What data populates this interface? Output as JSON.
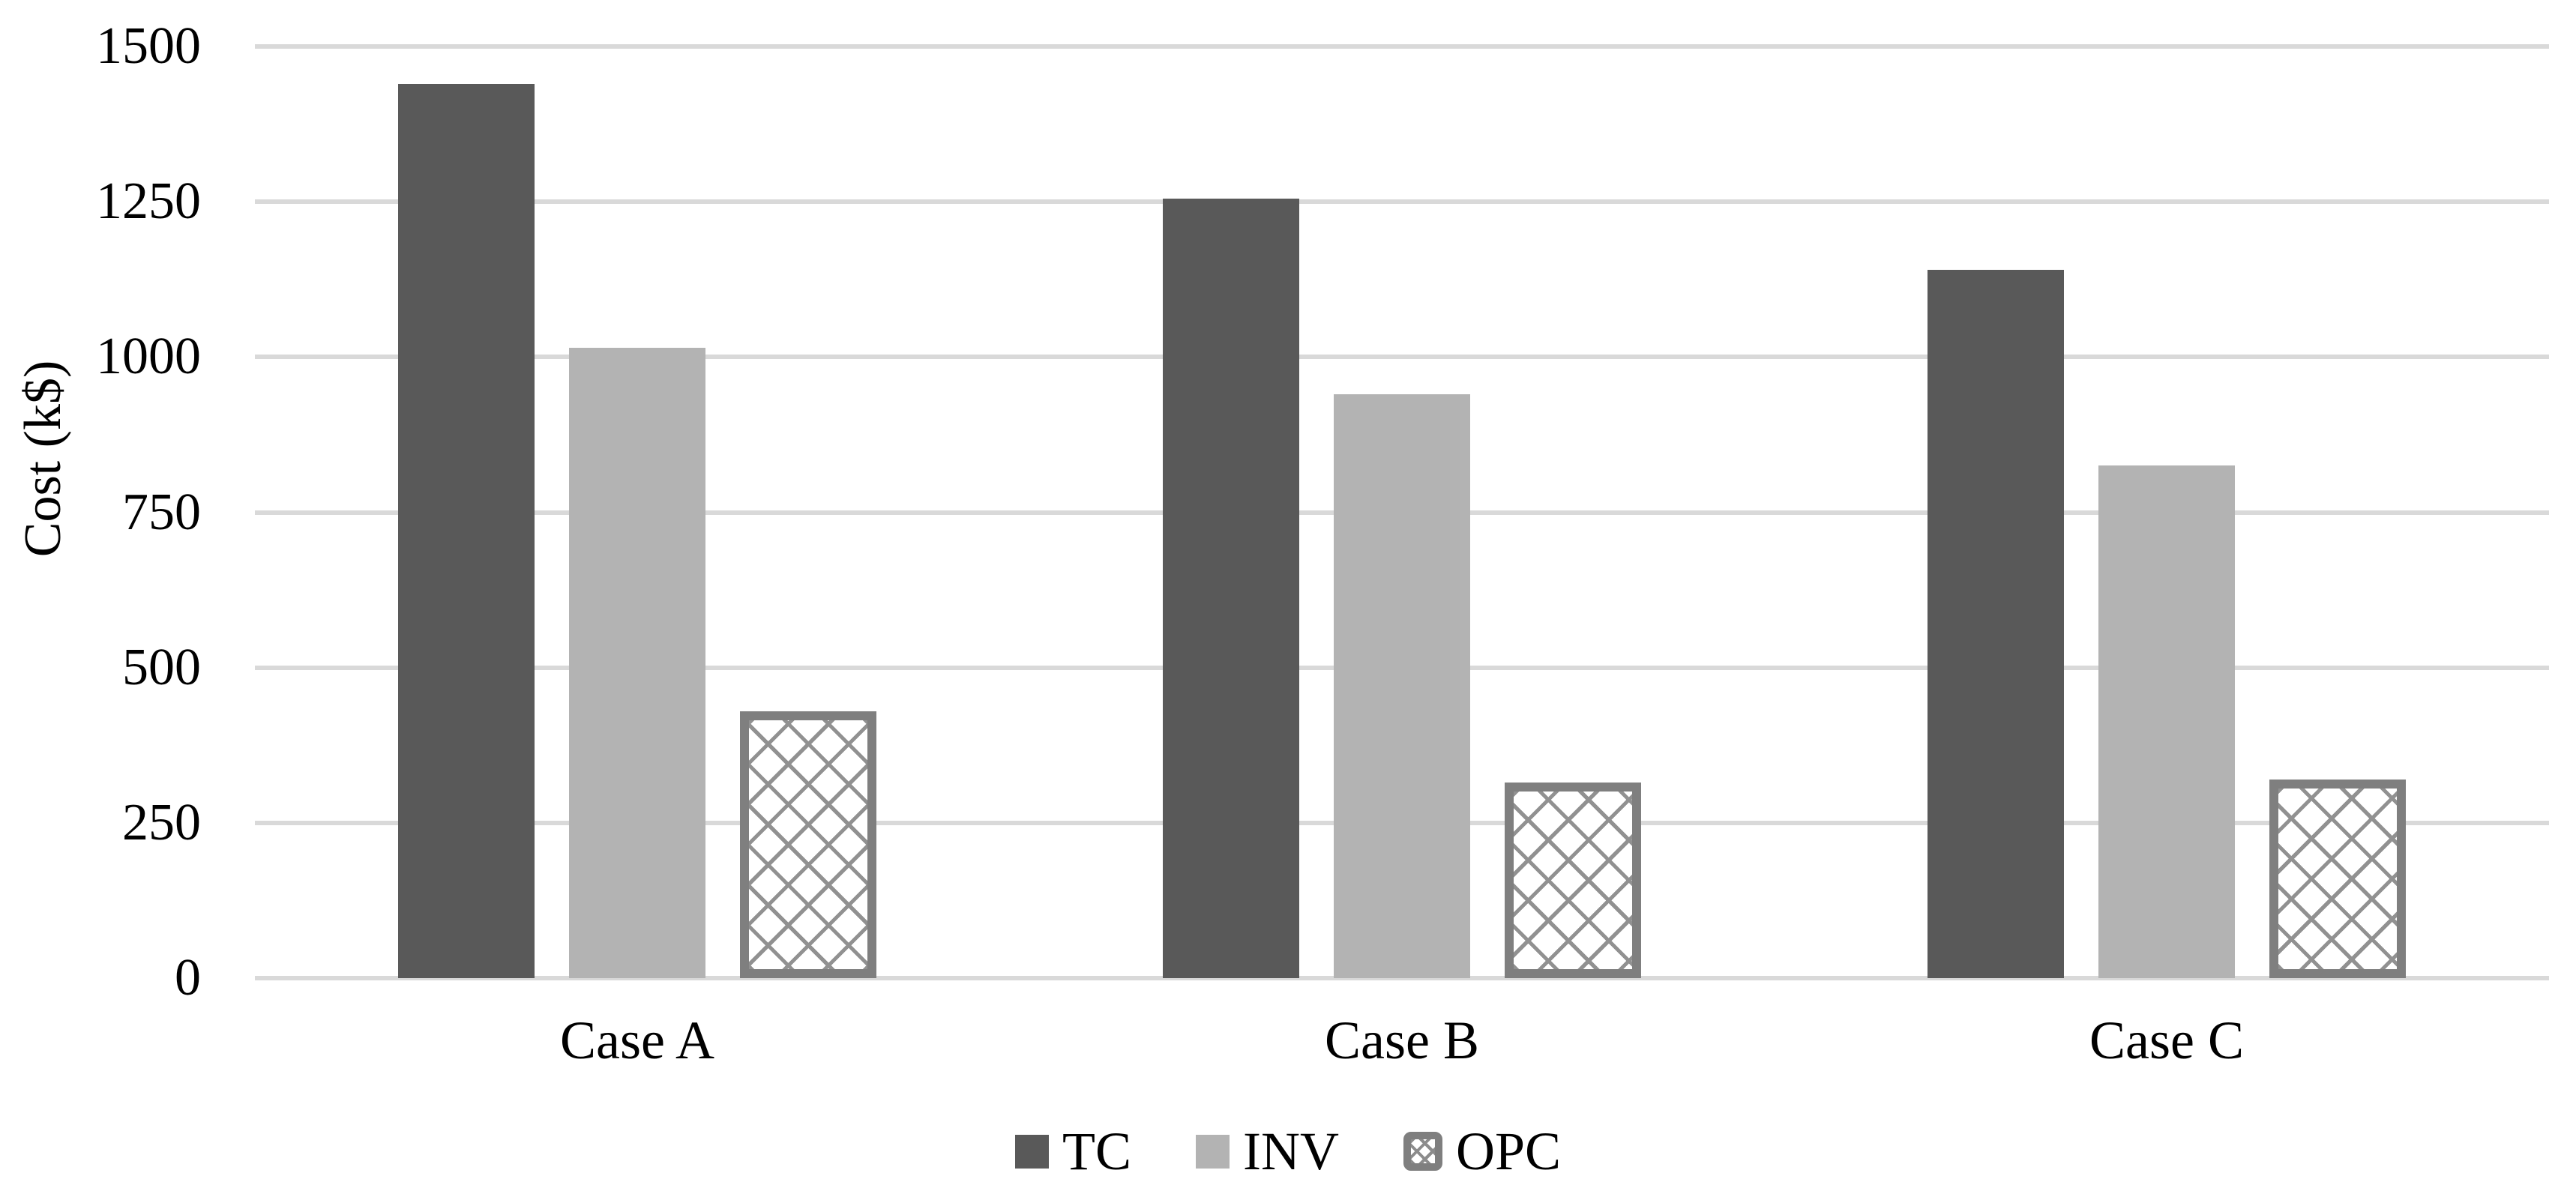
{
  "y_axis": {
    "label": "Cost (k$)",
    "tick_labels": [
      "1500",
      "1250",
      "1000",
      "750",
      "500",
      "250",
      "0"
    ]
  },
  "x_axis": {
    "categories": [
      "Case A",
      "Case B",
      "Case C"
    ]
  },
  "legend": {
    "items": [
      {
        "label": "TC"
      },
      {
        "label": "INV"
      },
      {
        "label": "OPC"
      }
    ]
  },
  "colors": {
    "tc_fill": "#595959",
    "inv_fill": "#b3b3b3",
    "opc_border": "#7f7f7f",
    "opc_hatch": "#919191",
    "gridline": "#d9d9d9",
    "text": "#000000",
    "background": "#ffffff"
  },
  "chart_data": {
    "type": "bar",
    "title": "",
    "categories": [
      "Case A",
      "Case B",
      "Case C"
    ],
    "series": [
      {
        "name": "TC",
        "key": "tc",
        "style": "solid-dark-gray",
        "values": [
          1440,
          1255,
          1140
        ]
      },
      {
        "name": "INV",
        "key": "inv",
        "style": "solid-light-gray",
        "values": [
          1015,
          940,
          825
        ]
      },
      {
        "name": "OPC",
        "key": "opc",
        "style": "diamond-crosshatch-outlined",
        "values": [
          430,
          315,
          320
        ]
      }
    ],
    "xlabel": "",
    "ylabel": "Cost (k$)",
    "ylim": [
      0,
      1500
    ],
    "yticks": [
      0,
      250,
      500,
      750,
      1000,
      1250,
      1500
    ],
    "grid": "horizontal",
    "legend_position": "bottom"
  }
}
